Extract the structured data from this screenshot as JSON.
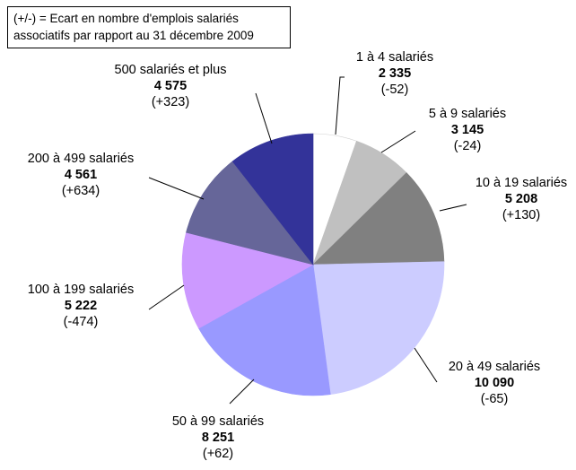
{
  "note": {
    "line1": "(+/-) = Ecart en nombre d'emplois salariés",
    "line2": "associatifs par rapport au 31 décembre 2009"
  },
  "chart_data": {
    "type": "pie",
    "title": "",
    "slices": [
      {
        "label": "1 à 4 salariés",
        "value": 2335,
        "value_label": "2 335",
        "change_label": "(-52)",
        "color": "#ffffff"
      },
      {
        "label": "5 à 9 salariés",
        "value": 3145,
        "value_label": "3 145",
        "change_label": "(-24)",
        "color": "#c0c0c0"
      },
      {
        "label": "10 à 19 salariés",
        "value": 5208,
        "value_label": "5 208",
        "change_label": "(+130)",
        "color": "#808080"
      },
      {
        "label": "20 à 49 salariés",
        "value": 10090,
        "value_label": "10 090",
        "change_label": "(-65)",
        "color": "#ccccff"
      },
      {
        "label": "50 à 99 salariés",
        "value": 8251,
        "value_label": "8 251",
        "change_label": "(+62)",
        "color": "#9999ff"
      },
      {
        "label": "100 à 199 salariés",
        "value": 5222,
        "value_label": "5 222",
        "change_label": "(-474)",
        "color": "#cc99ff"
      },
      {
        "label": "200 à 499 salariés",
        "value": 4561,
        "value_label": "4 561",
        "change_label": "(+634)",
        "color": "#666699"
      },
      {
        "label": "500 salariés et plus",
        "value": 4575,
        "value_label": "4 575",
        "change_label": "(+323)",
        "color": "#333399"
      }
    ]
  }
}
